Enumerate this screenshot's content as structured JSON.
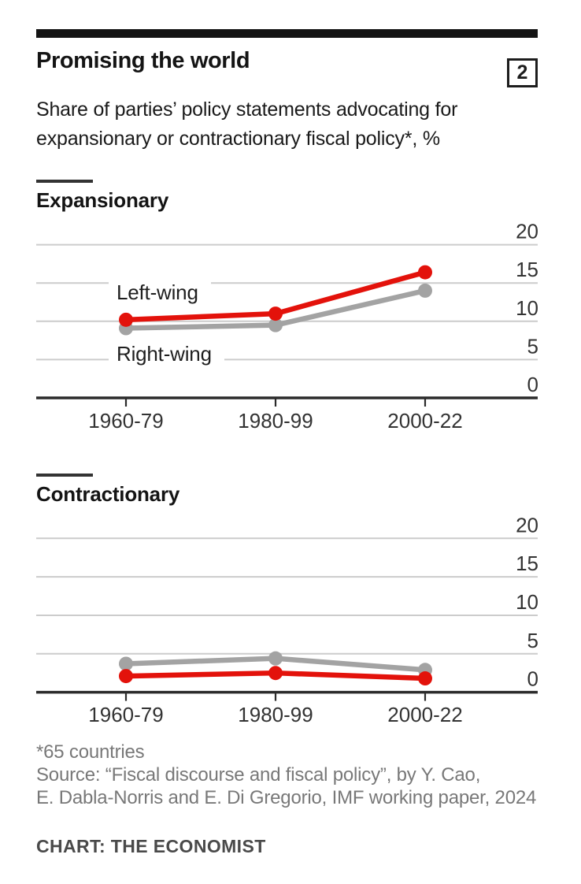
{
  "header": {
    "title": "Promising the world",
    "index_badge": "2",
    "subtitle_line1": "Share of parties’ policy statements advocating for",
    "subtitle_line2": "expansionary or contractionary fiscal policy*, %"
  },
  "colors": {
    "left_wing": "#e3120b",
    "right_wing": "#a3a3a3",
    "gridline": "#cccccc",
    "axis": "#2b2b2b",
    "tick_label": "#333333"
  },
  "chart_data": [
    {
      "type": "line",
      "panel_label": "Expansionary",
      "categories": [
        "1960-79",
        "1980-99",
        "2000-22"
      ],
      "y_ticks": [
        0,
        5,
        10,
        15,
        20
      ],
      "ylim": [
        0,
        20
      ],
      "grid": true,
      "legend_position": "inline-left",
      "series": [
        {
          "name": "Left-wing",
          "color_key": "left_wing",
          "values": [
            10.2,
            11,
            16.4
          ]
        },
        {
          "name": "Right-wing",
          "color_key": "right_wing",
          "values": [
            9.1,
            9.5,
            14
          ]
        }
      ]
    },
    {
      "type": "line",
      "panel_label": "Contractionary",
      "categories": [
        "1960-79",
        "1980-99",
        "2000-22"
      ],
      "y_ticks": [
        0,
        5,
        10,
        15,
        20
      ],
      "ylim": [
        0,
        20
      ],
      "grid": true,
      "legend_position": "none",
      "series": [
        {
          "name": "Left-wing",
          "color_key": "left_wing",
          "values": [
            2.1,
            2.5,
            1.8
          ]
        },
        {
          "name": "Right-wing",
          "color_key": "right_wing",
          "values": [
            3.7,
            4.4,
            2.9
          ]
        }
      ]
    }
  ],
  "footnotes": [
    "*65 countries",
    "Source: “Fiscal discourse and fiscal policy”, by Y. Cao,",
    "E. Dabla-Norris and E. Di Gregorio, IMF working paper, 2024"
  ],
  "credit": "CHART: THE ECONOMIST"
}
